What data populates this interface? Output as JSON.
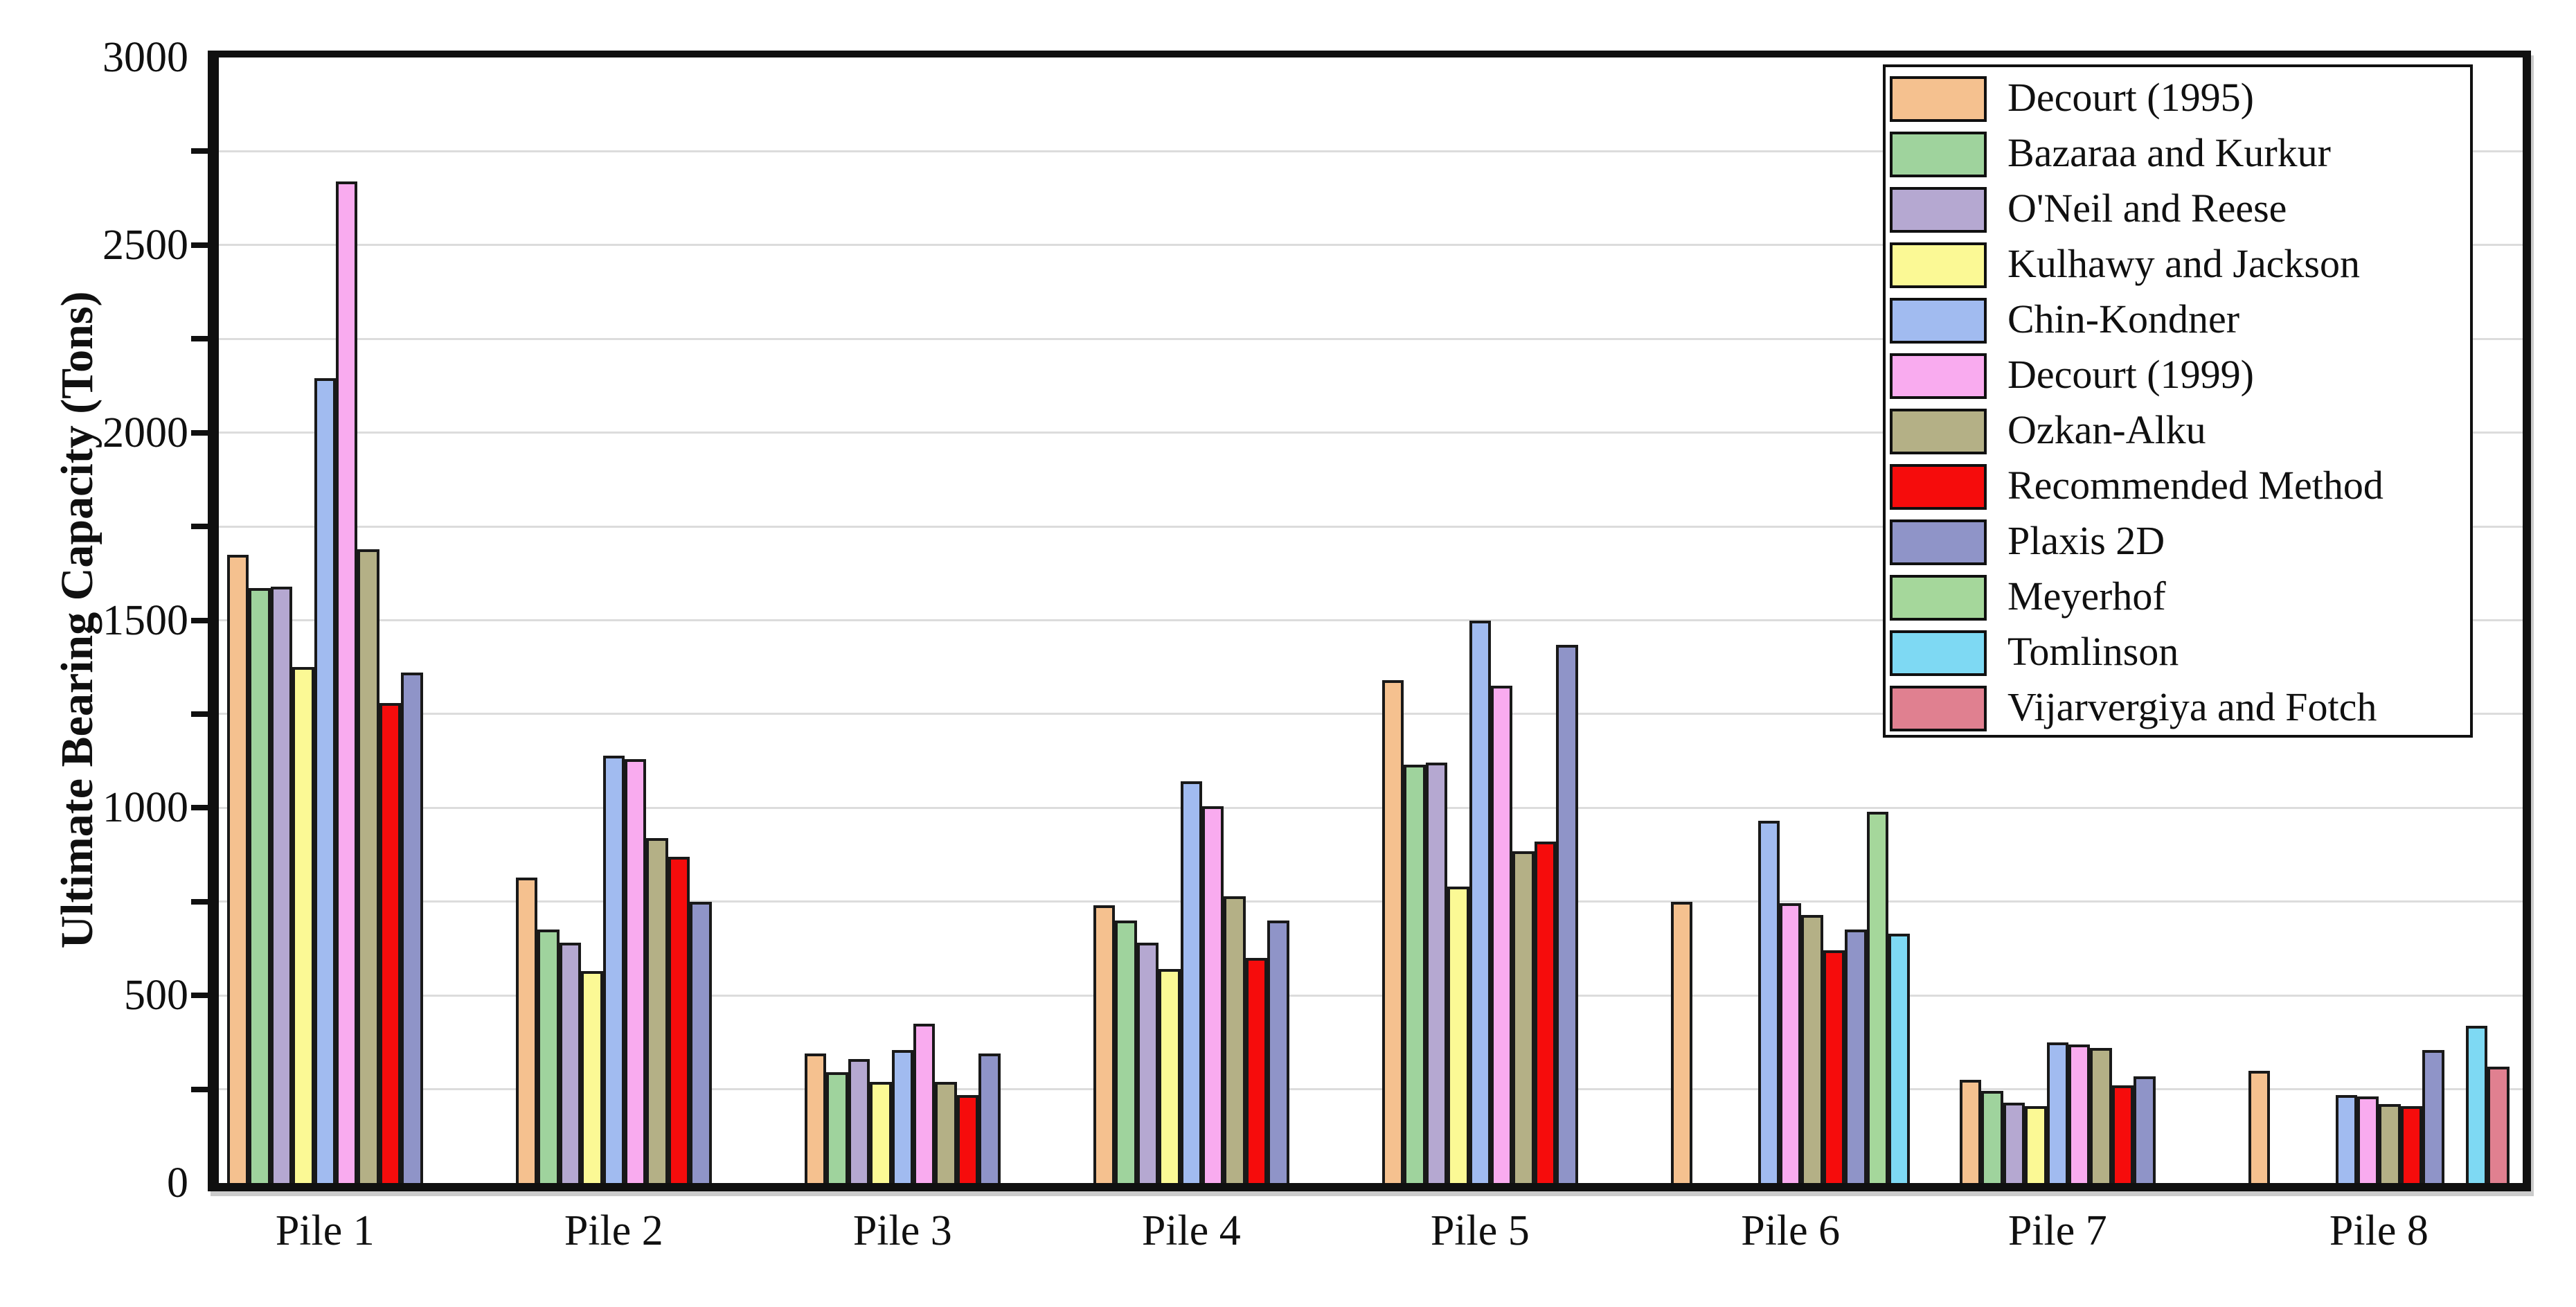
{
  "figure": {
    "description_role": "static bar chart figure",
    "background": "#ffffff",
    "axis_color": "#101010",
    "gridline_color": "#dcdcdc",
    "bar_border_color": "#191919"
  },
  "chart_data": {
    "type": "bar",
    "title": "",
    "xlabel": "",
    "ylabel": "Ultimate Bearing Capacity (Tons)",
    "ylim": [
      0,
      3000
    ],
    "ytick_labeled_step": 500,
    "ytick_minor_step": 250,
    "ytick_labels": [
      "0",
      "500",
      "1000",
      "1500",
      "2000",
      "2500",
      "3000"
    ],
    "grid": "horizontal light-gray lines every 250",
    "legend_position": "top-right inside plot, boxed",
    "categories": [
      "Pile 1",
      "Pile 2",
      "Pile 3",
      "Pile 4",
      "Pile 5",
      "Pile 6",
      "Pile 7",
      "Pile 8"
    ],
    "group_slot_counts": [
      9,
      9,
      9,
      9,
      9,
      11,
      9,
      12
    ],
    "series": [
      {
        "name": "Decourt (1995)",
        "color": "#F5C18F",
        "values": [
          1675,
          815,
          345,
          740,
          1340,
          750,
          275,
          300
        ]
      },
      {
        "name": "Bazaraa and Kurkur",
        "color": "#9FD39D",
        "values": [
          1585,
          675,
          295,
          700,
          1115,
          null,
          245,
          null
        ]
      },
      {
        "name": "O'Neil and Reese",
        "color": "#B5A8D1",
        "values": [
          1590,
          640,
          330,
          640,
          1120,
          null,
          215,
          null
        ]
      },
      {
        "name": "Kulhawy and Jackson",
        "color": "#FBF995",
        "values": [
          1375,
          565,
          270,
          570,
          790,
          null,
          205,
          null
        ]
      },
      {
        "name": "Chin-Kondner",
        "color": "#A1BBF0",
        "values": [
          2145,
          1140,
          355,
          1070,
          1500,
          965,
          375,
          235
        ]
      },
      {
        "name": "Decourt (1999)",
        "color": "#F9ABEF",
        "values": [
          2670,
          1130,
          425,
          1005,
          1325,
          745,
          370,
          230
        ]
      },
      {
        "name": "Ozkan-Alku",
        "color": "#B4B086",
        "values": [
          1690,
          920,
          270,
          765,
          885,
          715,
          360,
          210
        ]
      },
      {
        "name": "Recommended Method",
        "color": "#F60C0C",
        "values": [
          1280,
          870,
          235,
          600,
          910,
          620,
          260,
          205
        ]
      },
      {
        "name": "Plaxis 2D",
        "color": "#8F94C8",
        "values": [
          1360,
          750,
          345,
          700,
          1435,
          675,
          285,
          355
        ]
      },
      {
        "name": "Meyerhof",
        "color": "#A5D79B",
        "values": [
          null,
          null,
          null,
          null,
          null,
          990,
          null,
          null
        ]
      },
      {
        "name": "Tomlinson",
        "color": "#7ED9F3",
        "values": [
          null,
          null,
          null,
          null,
          null,
          665,
          null,
          420
        ]
      },
      {
        "name": "Vijarvergiya and Fotch",
        "color": "#E08090",
        "values": [
          null,
          null,
          null,
          null,
          null,
          null,
          null,
          310
        ]
      }
    ]
  }
}
